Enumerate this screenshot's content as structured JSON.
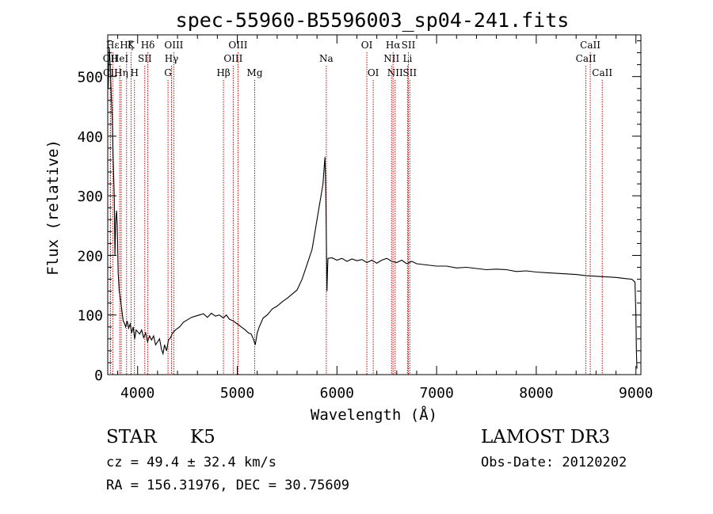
{
  "chart_data": {
    "type": "line",
    "title": "spec-55960-B5596003_sp04-241.fits",
    "xlabel": "Wavelength (Å)",
    "ylabel": "Flux (relative)",
    "xlim": [
      3700,
      9050
    ],
    "ylim": [
      0,
      570
    ],
    "xticks": [
      4000,
      5000,
      6000,
      7000,
      8000,
      9000
    ],
    "yticks": [
      0,
      100,
      200,
      300,
      400,
      500
    ],
    "line_color": "#000000",
    "marker_color": "#cc0000",
    "series": [
      {
        "name": "flux",
        "points": [
          [
            3705,
            480
          ],
          [
            3715,
            550
          ],
          [
            3725,
            520
          ],
          [
            3735,
            470
          ],
          [
            3745,
            430
          ],
          [
            3755,
            360
          ],
          [
            3765,
            300
          ],
          [
            3772,
            200
          ],
          [
            3780,
            260
          ],
          [
            3788,
            275
          ],
          [
            3795,
            250
          ],
          [
            3805,
            170
          ],
          [
            3815,
            140
          ],
          [
            3825,
            130
          ],
          [
            3840,
            110
          ],
          [
            3855,
            90
          ],
          [
            3870,
            85
          ],
          [
            3880,
            80
          ],
          [
            3895,
            90
          ],
          [
            3910,
            78
          ],
          [
            3925,
            85
          ],
          [
            3940,
            70
          ],
          [
            3955,
            80
          ],
          [
            3970,
            60
          ],
          [
            3985,
            75
          ],
          [
            4000,
            72
          ],
          [
            4020,
            68
          ],
          [
            4040,
            75
          ],
          [
            4060,
            62
          ],
          [
            4080,
            70
          ],
          [
            4100,
            55
          ],
          [
            4120,
            65
          ],
          [
            4140,
            58
          ],
          [
            4160,
            65
          ],
          [
            4180,
            50
          ],
          [
            4200,
            55
          ],
          [
            4220,
            60
          ],
          [
            4240,
            42
          ],
          [
            4255,
            35
          ],
          [
            4270,
            50
          ],
          [
            4290,
            40
          ],
          [
            4310,
            58
          ],
          [
            4330,
            62
          ],
          [
            4350,
            70
          ],
          [
            4380,
            75
          ],
          [
            4420,
            80
          ],
          [
            4460,
            88
          ],
          [
            4500,
            92
          ],
          [
            4540,
            96
          ],
          [
            4580,
            98
          ],
          [
            4620,
            100
          ],
          [
            4660,
            102
          ],
          [
            4700,
            96
          ],
          [
            4740,
            103
          ],
          [
            4780,
            98
          ],
          [
            4820,
            100
          ],
          [
            4860,
            95
          ],
          [
            4890,
            100
          ],
          [
            4920,
            93
          ],
          [
            4960,
            90
          ],
          [
            5000,
            85
          ],
          [
            5040,
            80
          ],
          [
            5080,
            75
          ],
          [
            5110,
            70
          ],
          [
            5140,
            68
          ],
          [
            5160,
            60
          ],
          [
            5180,
            50
          ],
          [
            5200,
            70
          ],
          [
            5220,
            80
          ],
          [
            5260,
            95
          ],
          [
            5300,
            100
          ],
          [
            5350,
            110
          ],
          [
            5400,
            115
          ],
          [
            5450,
            122
          ],
          [
            5500,
            128
          ],
          [
            5550,
            135
          ],
          [
            5600,
            142
          ],
          [
            5650,
            160
          ],
          [
            5700,
            185
          ],
          [
            5750,
            210
          ],
          [
            5780,
            240
          ],
          [
            5810,
            270
          ],
          [
            5840,
            300
          ],
          [
            5860,
            320
          ],
          [
            5875,
            355
          ],
          [
            5880,
            365
          ],
          [
            5885,
            330
          ],
          [
            5890,
            280
          ],
          [
            5895,
            210
          ],
          [
            5900,
            140
          ],
          [
            5905,
            175
          ],
          [
            5910,
            195
          ],
          [
            5950,
            196
          ],
          [
            6000,
            192
          ],
          [
            6050,
            195
          ],
          [
            6100,
            190
          ],
          [
            6150,
            194
          ],
          [
            6200,
            191
          ],
          [
            6250,
            193
          ],
          [
            6300,
            188
          ],
          [
            6350,
            192
          ],
          [
            6400,
            187
          ],
          [
            6450,
            192
          ],
          [
            6500,
            195
          ],
          [
            6550,
            190
          ],
          [
            6600,
            188
          ],
          [
            6650,
            192
          ],
          [
            6700,
            186
          ],
          [
            6750,
            190
          ],
          [
            6800,
            186
          ],
          [
            6900,
            184
          ],
          [
            7000,
            182
          ],
          [
            7100,
            182
          ],
          [
            7200,
            179
          ],
          [
            7300,
            180
          ],
          [
            7400,
            178
          ],
          [
            7500,
            176
          ],
          [
            7600,
            177
          ],
          [
            7700,
            176
          ],
          [
            7800,
            173
          ],
          [
            7900,
            174
          ],
          [
            8000,
            172
          ],
          [
            8100,
            171
          ],
          [
            8200,
            170
          ],
          [
            8300,
            169
          ],
          [
            8400,
            168
          ],
          [
            8500,
            166
          ],
          [
            8600,
            165
          ],
          [
            8700,
            164
          ],
          [
            8800,
            163
          ],
          [
            8900,
            161
          ],
          [
            8960,
            160
          ],
          [
            8990,
            155
          ],
          [
            9000,
            100
          ],
          [
            9005,
            40
          ],
          [
            9010,
            10
          ]
        ]
      }
    ],
    "line_markers": [
      {
        "label": "Hε",
        "wavelength": 3750,
        "row": 0
      },
      {
        "label": "OII",
        "wavelength": 3727,
        "row": 1
      },
      {
        "label": "CII",
        "wavelength": 3727,
        "row": 2
      },
      {
        "label": "Hζ",
        "wavelength": 3889,
        "row": 0
      },
      {
        "label": "HeI",
        "wavelength": 3820,
        "row": 1
      },
      {
        "label": "Hη",
        "wavelength": 3835,
        "row": 2
      },
      {
        "label": "K",
        "wavelength": 3934,
        "row": 0
      },
      {
        "label": "SII",
        "wavelength": 4072,
        "row": 1
      },
      {
        "label": "H",
        "wavelength": 3968,
        "row": 2
      },
      {
        "label": "Hδ",
        "wavelength": 4102,
        "row": 0
      },
      {
        "label": "OIII",
        "wavelength": 4363,
        "row": 0
      },
      {
        "label": "Hγ",
        "wavelength": 4340,
        "row": 1
      },
      {
        "label": "G",
        "wavelength": 4305,
        "row": 2
      },
      {
        "label": "Hβ",
        "wavelength": 4861,
        "row": 2
      },
      {
        "label": "OIII",
        "wavelength": 4959,
        "row": 1
      },
      {
        "label": "OIII",
        "wavelength": 5007,
        "row": 0
      },
      {
        "label": "Mg",
        "wavelength": 5175,
        "row": 2
      },
      {
        "label": "Na",
        "wavelength": 5893,
        "row": 1
      },
      {
        "label": "OI",
        "wavelength": 6300,
        "row": 0
      },
      {
        "label": "OI",
        "wavelength": 6364,
        "row": 2
      },
      {
        "label": "Hα",
        "wavelength": 6563,
        "row": 0
      },
      {
        "label": "NII",
        "wavelength": 6548,
        "row": 1
      },
      {
        "label": "NII",
        "wavelength": 6584,
        "row": 2
      },
      {
        "label": "SII",
        "wavelength": 6717,
        "row": 0
      },
      {
        "label": "Li",
        "wavelength": 6708,
        "row": 1
      },
      {
        "label": "SII",
        "wavelength": 6731,
        "row": 2
      },
      {
        "label": "CaII",
        "wavelength": 8542,
        "row": 0
      },
      {
        "label": "CaII",
        "wavelength": 8498,
        "row": 1
      },
      {
        "label": "CaII",
        "wavelength": 8662,
        "row": 2
      }
    ]
  },
  "info": {
    "object_class": "STAR",
    "subclass": "K5",
    "survey": "LAMOST DR3",
    "redshift": "cz = 49.4 ± 32.4 km/s",
    "obs_date": "Obs-Date: 20120202",
    "coords": "RA = 156.31976, DEC =  30.75609"
  }
}
